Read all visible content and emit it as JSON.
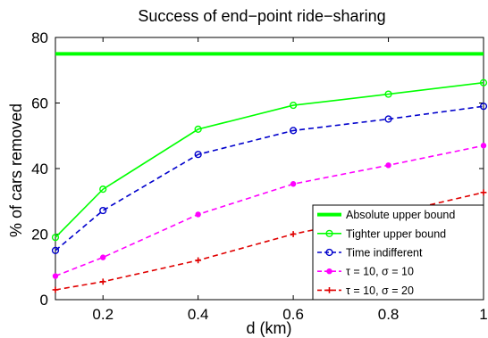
{
  "chart_data": {
    "type": "line",
    "title": "Success of end−point ride−sharing",
    "xlabel": "d (km)",
    "ylabel": "% of cars removed",
    "xlim": [
      0.1,
      1.0
    ],
    "ylim": [
      0,
      80
    ],
    "x_ticks": [
      0.2,
      0.4,
      0.6,
      0.8,
      1.0
    ],
    "x_tick_labels": [
      "0.2",
      "0.4",
      "0.6",
      "0.8",
      "1"
    ],
    "y_ticks": [
      0,
      20,
      40,
      60,
      80
    ],
    "y_tick_labels": [
      "0",
      "20",
      "40",
      "60",
      "80"
    ],
    "grid": false,
    "legend_position": "bottom-right",
    "series": [
      {
        "name": "Absolute upper bound",
        "color": "#00ff00",
        "line_style": "solid",
        "line_width": "thick",
        "marker": "none",
        "x": [
          0.1,
          1.0
        ],
        "values": [
          75,
          75
        ]
      },
      {
        "name": "Tighter upper bound",
        "color": "#00ff00",
        "line_style": "solid",
        "marker": "circle",
        "x": [
          0.1,
          0.2,
          0.4,
          0.6,
          0.8,
          1.0
        ],
        "values": [
          19,
          33.7,
          52,
          59.3,
          62.7,
          66.2
        ]
      },
      {
        "name": "Time indifferent",
        "color": "#0000cc",
        "line_style": "dashed",
        "marker": "circle",
        "x": [
          0.1,
          0.2,
          0.4,
          0.6,
          0.8,
          1.0
        ],
        "values": [
          15,
          27.2,
          44.3,
          51.6,
          55.1,
          59
        ]
      },
      {
        "name": "τ = 10, σ = 10",
        "color": "#ff00ff",
        "line_style": "dashed",
        "marker": "dot",
        "x": [
          0.1,
          0.2,
          0.4,
          0.6,
          0.8,
          1.0
        ],
        "values": [
          7.2,
          12.9,
          26,
          35.3,
          41,
          47
        ]
      },
      {
        "name": "τ = 10, σ = 20",
        "color": "#e00000",
        "line_style": "dashed",
        "marker": "plus",
        "x": [
          0.1,
          0.2,
          0.4,
          0.6,
          0.8,
          1.0
        ],
        "values": [
          3,
          5.5,
          12,
          20,
          26,
          32.7
        ]
      }
    ]
  }
}
